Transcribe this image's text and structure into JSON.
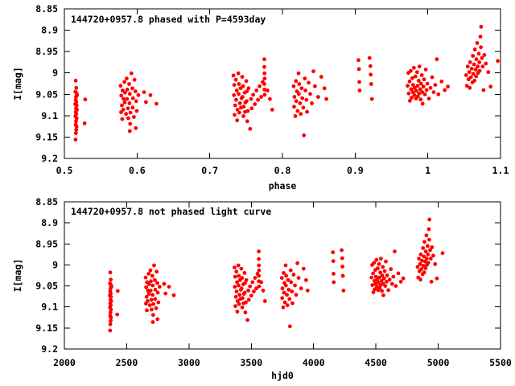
{
  "figure": {
    "background": "#ffffff",
    "axis_color": "#000000",
    "marker_color": "#ff0000"
  },
  "chart_data": [
    {
      "type": "scatter",
      "title": "144720+0957.8 phased with P=4593day",
      "xlabel": "phase",
      "ylabel": "I[mag]",
      "x_source": "phase",
      "period_days": 4593,
      "xlim": [
        0.5,
        1.1
      ],
      "ylim": [
        8.85,
        9.2
      ],
      "y_inverted": true,
      "grid": false,
      "legend": "none",
      "xtick_values": [
        0.5,
        0.6,
        0.7,
        0.8,
        0.9,
        1.0,
        1.1
      ],
      "xtick_labels": [
        "0.5",
        "0.6",
        "0.7",
        "0.8",
        "0.9",
        "1",
        "1.1"
      ],
      "ytick_values": [
        8.85,
        8.9,
        8.95,
        9.0,
        9.05,
        9.1,
        9.15,
        9.2
      ],
      "ytick_labels": [
        "8.85",
        "8.9",
        "8.95",
        "9",
        "9.05",
        "9.1",
        "9.15",
        "9.2"
      ],
      "marker_color": "#ff0000"
    },
    {
      "type": "scatter",
      "title": "144720+0957.8 not phased light curve",
      "xlabel": "hjd0",
      "ylabel": "I[mag]",
      "x_source": "hjd",
      "xlim": [
        2000,
        5500
      ],
      "ylim": [
        8.85,
        9.2
      ],
      "y_inverted": true,
      "grid": false,
      "legend": "none",
      "xtick_values": [
        2000,
        2500,
        3000,
        3500,
        4000,
        4500,
        5000,
        5500
      ],
      "xtick_labels": [
        "2000",
        "2500",
        "3000",
        "3500",
        "4000",
        "4500",
        "5000",
        "5500"
      ],
      "ytick_values": [
        8.85,
        8.9,
        8.95,
        9.0,
        9.05,
        9.1,
        9.15,
        9.2
      ],
      "ytick_labels": [
        "8.85",
        "8.9",
        "8.95",
        "9",
        "9.05",
        "9.1",
        "9.15",
        "9.2"
      ],
      "marker_color": "#ff0000"
    }
  ],
  "points_hjd_mag": [
    [
      2368,
      9.018
    ],
    [
      2372,
      9.035
    ],
    [
      2366,
      9.044
    ],
    [
      2374,
      9.048
    ],
    [
      2370,
      9.056
    ],
    [
      2377,
      9.052
    ],
    [
      2368,
      9.063
    ],
    [
      2372,
      9.068
    ],
    [
      2365,
      9.073
    ],
    [
      2374,
      9.076
    ],
    [
      2370,
      9.083
    ],
    [
      2376,
      9.086
    ],
    [
      2368,
      9.091
    ],
    [
      2372,
      9.096
    ],
    [
      2366,
      9.101
    ],
    [
      2374,
      9.106
    ],
    [
      2370,
      9.113
    ],
    [
      2368,
      9.121
    ],
    [
      2374,
      9.126
    ],
    [
      2371,
      9.133
    ],
    [
      2369,
      9.141
    ],
    [
      2367,
      9.156
    ],
    [
      2428,
      9.062
    ],
    [
      2424,
      9.118
    ],
    [
      2652,
      9.03
    ],
    [
      2656,
      9.053
    ],
    [
      2660,
      9.076
    ],
    [
      2655,
      9.092
    ],
    [
      2664,
      9.041
    ],
    [
      2670,
      9.061
    ],
    [
      2668,
      9.086
    ],
    [
      2662,
      9.108
    ],
    [
      2676,
      9.021
    ],
    [
      2680,
      9.046
    ],
    [
      2678,
      9.069
    ],
    [
      2686,
      9.096
    ],
    [
      2690,
      9.013
    ],
    [
      2694,
      9.039
    ],
    [
      2692,
      9.061
    ],
    [
      2698,
      9.083
    ],
    [
      2700,
      9.106
    ],
    [
      2706,
      9.026
    ],
    [
      2710,
      9.049
    ],
    [
      2708,
      9.071
    ],
    [
      2714,
      9.093
    ],
    [
      2712,
      9.119
    ],
    [
      2710,
      9.136
    ],
    [
      2720,
      9.001
    ],
    [
      2726,
      9.036
    ],
    [
      2730,
      9.059
    ],
    [
      2728,
      9.081
    ],
    [
      2736,
      9.103
    ],
    [
      2740,
      9.016
    ],
    [
      2746,
      9.043
    ],
    [
      2750,
      9.066
    ],
    [
      2754,
      9.089
    ],
    [
      2748,
      9.129
    ],
    [
      2764,
      9.052
    ],
    [
      2800,
      9.045
    ],
    [
      2812,
      9.068
    ],
    [
      2840,
      9.052
    ],
    [
      2878,
      9.072
    ],
    [
      3365,
      9.006
    ],
    [
      3370,
      9.028
    ],
    [
      3368,
      9.052
    ],
    [
      3376,
      9.076
    ],
    [
      3372,
      9.098
    ],
    [
      3380,
      9.016
    ],
    [
      3386,
      9.041
    ],
    [
      3382,
      9.063
    ],
    [
      3390,
      9.086
    ],
    [
      3388,
      9.111
    ],
    [
      3396,
      9.001
    ],
    [
      3400,
      9.026
    ],
    [
      3398,
      9.049
    ],
    [
      3406,
      9.071
    ],
    [
      3402,
      9.093
    ],
    [
      3410,
      9.036
    ],
    [
      3416,
      9.059
    ],
    [
      3412,
      9.081
    ],
    [
      3420,
      9.009
    ],
    [
      3426,
      9.031
    ],
    [
      3422,
      9.056
    ],
    [
      3430,
      9.079
    ],
    [
      3428,
      9.101
    ],
    [
      3436,
      9.046
    ],
    [
      3440,
      9.069
    ],
    [
      3438,
      9.091
    ],
    [
      3446,
      9.019
    ],
    [
      3450,
      9.043
    ],
    [
      3448,
      9.066
    ],
    [
      3456,
      9.089
    ],
    [
      3452,
      9.113
    ],
    [
      3460,
      9.036
    ],
    [
      3470,
      9.131
    ],
    [
      3476,
      9.061
    ],
    [
      3480,
      9.083
    ],
    [
      3490,
      9.051
    ],
    [
      3500,
      9.073
    ],
    [
      3510,
      9.041
    ],
    [
      3520,
      9.063
    ],
    [
      3530,
      9.031
    ],
    [
      3540,
      9.056
    ],
    [
      3550,
      9.021
    ],
    [
      3560,
      8.968
    ],
    [
      3560,
      8.986
    ],
    [
      3561,
      9.001
    ],
    [
      3562,
      9.013
    ],
    [
      3560,
      9.026
    ],
    [
      3561,
      9.039
    ],
    [
      3562,
      9.051
    ],
    [
      3580,
      9.041
    ],
    [
      3595,
      9.061
    ],
    [
      3610,
      9.086
    ],
    [
      3745,
      9.031
    ],
    [
      3750,
      9.056
    ],
    [
      3748,
      9.079
    ],
    [
      3756,
      9.101
    ],
    [
      3760,
      9.019
    ],
    [
      3766,
      9.043
    ],
    [
      3762,
      9.066
    ],
    [
      3770,
      9.089
    ],
    [
      3776,
      9.001
    ],
    [
      3780,
      9.026
    ],
    [
      3778,
      9.049
    ],
    [
      3786,
      9.071
    ],
    [
      3790,
      9.096
    ],
    [
      3796,
      9.036
    ],
    [
      3800,
      9.059
    ],
    [
      3810,
      9.146
    ],
    [
      3806,
      9.081
    ],
    [
      3816,
      9.013
    ],
    [
      3820,
      9.041
    ],
    [
      3826,
      9.063
    ],
    [
      3830,
      9.091
    ],
    [
      3840,
      9.023
    ],
    [
      3850,
      9.049
    ],
    [
      3860,
      9.071
    ],
    [
      3870,
      8.996
    ],
    [
      3880,
      9.031
    ],
    [
      3900,
      9.056
    ],
    [
      3920,
      9.009
    ],
    [
      3940,
      9.036
    ],
    [
      3952,
      9.061
    ],
    [
      4155,
      8.97
    ],
    [
      4158,
      8.991
    ],
    [
      4160,
      9.021
    ],
    [
      4162,
      9.041
    ],
    [
      4225,
      8.965
    ],
    [
      4230,
      8.984
    ],
    [
      4232,
      9.004
    ],
    [
      4235,
      9.026
    ],
    [
      4240,
      9.061
    ],
    [
      4465,
      9.03
    ],
    [
      4470,
      9.0
    ],
    [
      4472,
      9.048
    ],
    [
      4478,
      9.02
    ],
    [
      4480,
      9.065
    ],
    [
      4485,
      8.995
    ],
    [
      4488,
      9.038
    ],
    [
      4490,
      9.058
    ],
    [
      4495,
      9.012
    ],
    [
      4498,
      9.045
    ],
    [
      4500,
      9.028
    ],
    [
      4505,
      8.988
    ],
    [
      4508,
      9.052
    ],
    [
      4510,
      9.035
    ],
    [
      4515,
      9.008
    ],
    [
      4518,
      9.06
    ],
    [
      4520,
      9.042
    ],
    [
      4525,
      8.998
    ],
    [
      4528,
      9.03
    ],
    [
      4530,
      9.055
    ],
    [
      4535,
      9.018
    ],
    [
      4538,
      9.048
    ],
    [
      4540,
      8.985
    ],
    [
      4545,
      9.038
    ],
    [
      4548,
      9.062
    ],
    [
      4550,
      9.025
    ],
    [
      4555,
      9.005
    ],
    [
      4558,
      9.045
    ],
    [
      4560,
      9.072
    ],
    [
      4565,
      9.032
    ],
    [
      4570,
      9.015
    ],
    [
      4575,
      9.05
    ],
    [
      4580,
      8.992
    ],
    [
      4585,
      9.04
    ],
    [
      4590,
      9.025
    ],
    [
      4600,
      9.06
    ],
    [
      4610,
      9.035
    ],
    [
      4620,
      9.01
    ],
    [
      4630,
      9.045
    ],
    [
      4640,
      9.028
    ],
    [
      4650,
      8.968
    ],
    [
      4660,
      9.05
    ],
    [
      4680,
      9.02
    ],
    [
      4700,
      9.04
    ],
    [
      4720,
      9.032
    ],
    [
      4835,
      9.005
    ],
    [
      4840,
      9.03
    ],
    [
      4845,
      8.985
    ],
    [
      4850,
      9.015
    ],
    [
      4855,
      8.998
    ],
    [
      4858,
      9.035
    ],
    [
      4860,
      8.975
    ],
    [
      4865,
      9.01
    ],
    [
      4870,
      8.99
    ],
    [
      4875,
      9.022
    ],
    [
      4878,
      8.96
    ],
    [
      4880,
      9.002
    ],
    [
      4885,
      8.98
    ],
    [
      4888,
      9.018
    ],
    [
      4890,
      8.945
    ],
    [
      4895,
      8.992
    ],
    [
      4898,
      9.008
    ],
    [
      4900,
      8.968
    ],
    [
      4905,
      8.93
    ],
    [
      4908,
      8.985
    ],
    [
      4910,
      9.0
    ],
    [
      4915,
      8.955
    ],
    [
      4918,
      8.975
    ],
    [
      4920,
      8.995
    ],
    [
      4925,
      8.915
    ],
    [
      4928,
      8.94
    ],
    [
      4930,
      8.892
    ],
    [
      4935,
      8.965
    ],
    [
      4940,
      8.985
    ],
    [
      4945,
      9.04
    ],
    [
      4950,
      8.958
    ],
    [
      4960,
      8.978
    ],
    [
      4975,
      8.998
    ],
    [
      4990,
      9.032
    ],
    [
      5035,
      8.972
    ]
  ]
}
